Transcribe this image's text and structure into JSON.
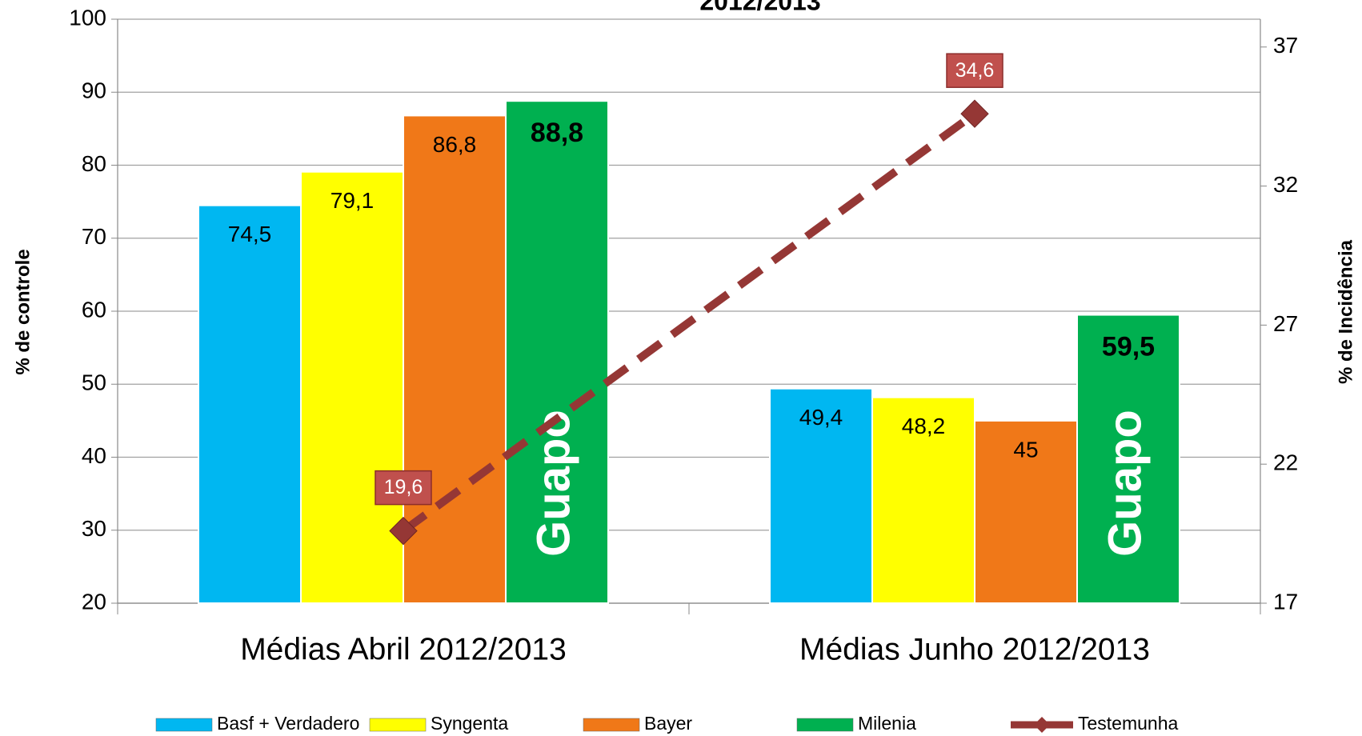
{
  "chart_data": {
    "type": "bar_line",
    "title": "2012/2013",
    "categories": [
      "Médias Abril 2012/2013",
      "Médias Junho 2012/2013"
    ],
    "ylabel": "% de controle",
    "y2label": "% de Incidência",
    "ylim": [
      20,
      100
    ],
    "yticks": [
      20,
      30,
      40,
      50,
      60,
      70,
      80,
      90,
      100
    ],
    "y2lim": [
      17,
      38
    ],
    "y2ticks": [
      17,
      22,
      27,
      32,
      37
    ],
    "series": [
      {
        "name": "Basf + Verdadero",
        "color": "#00b7f1",
        "values": [
          74.5,
          49.4
        ],
        "value_labels": [
          "74,5",
          "49,4"
        ]
      },
      {
        "name": "Syngenta",
        "color": "#ffff00",
        "values": [
          79.1,
          48.2
        ],
        "value_labels": [
          "79,1",
          "48,2"
        ]
      },
      {
        "name": "Bayer",
        "color": "#f07818",
        "values": [
          86.8,
          45
        ],
        "value_labels": [
          "86,8",
          "45"
        ]
      },
      {
        "name": "Milenia",
        "color": "#00b050",
        "values": [
          88.8,
          59.5
        ],
        "value_labels": [
          "88,8",
          "59,5"
        ]
      },
      {
        "name": "Testemunha",
        "color": "#953735",
        "axis": "y2",
        "type": "line",
        "values": [
          19.6,
          34.6
        ],
        "value_labels": [
          "19,6",
          "34,6"
        ]
      }
    ],
    "annotations": [
      "Guapo",
      "Guapo"
    ]
  }
}
